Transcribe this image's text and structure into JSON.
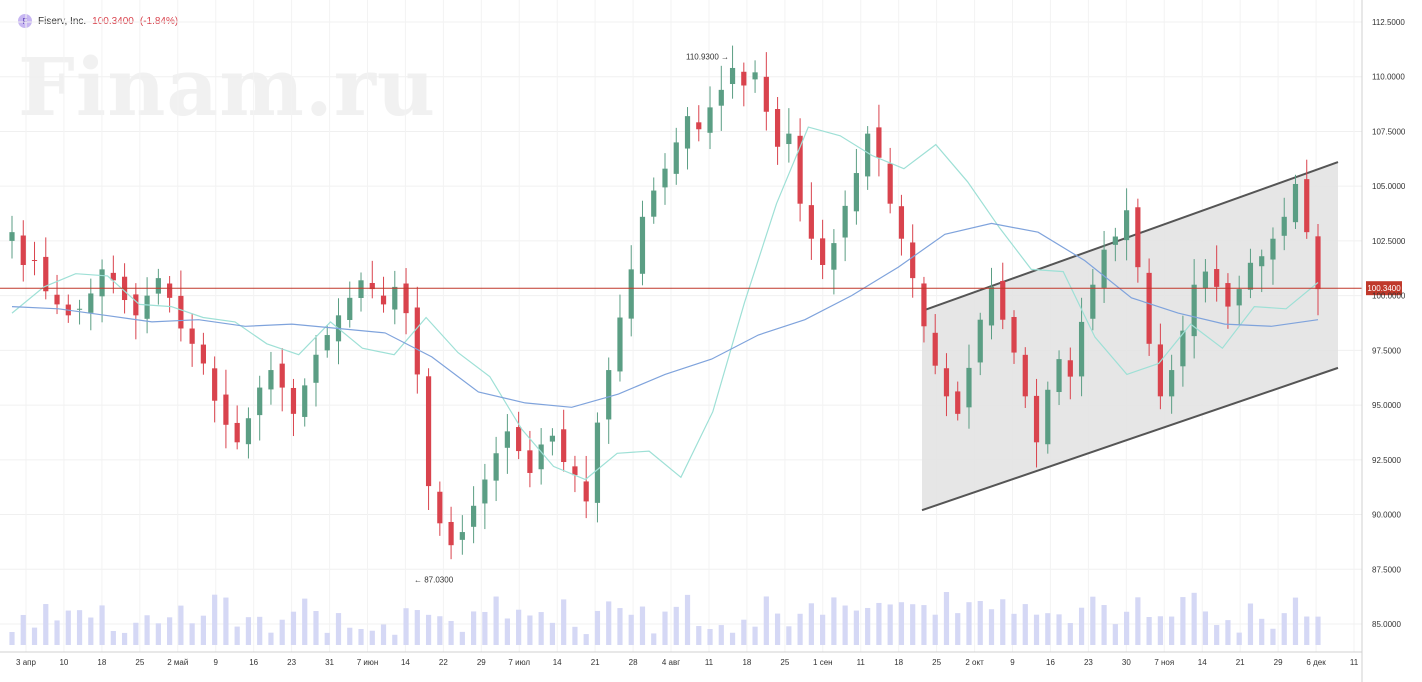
{
  "header": {
    "logo_letter": "F",
    "ticker": "Fiserv, Inc.",
    "price": "100.3400",
    "change": "(-1.84%)"
  },
  "watermark": "Finam.ru",
  "price_tag": "100.3400",
  "annotations": {
    "high_label": "110.9300",
    "low_label": "87.0300"
  },
  "colors": {
    "up": "#5b9e84",
    "down": "#d9434d",
    "sma_fast": "#9ee0d6",
    "sma_slow": "#7fa3dc",
    "volume": "#d5d8f5",
    "price_line": "#c0392b",
    "channel": "#555555"
  },
  "chart_data": {
    "type": "candlestick",
    "title": "Fiserv, Inc.",
    "ylim": [
      84,
      113
    ],
    "y_ticks": [
      "112.5000",
      "110.0000",
      "107.5000",
      "105.0000",
      "102.5000",
      "100.0000",
      "97.5000",
      "95.0000",
      "92.5000",
      "90.0000",
      "87.5000",
      "85.0000"
    ],
    "x_ticks": [
      "3 апр",
      "10",
      "18",
      "25",
      "2 май",
      "9",
      "16",
      "23",
      "31",
      "7 июн",
      "14",
      "22",
      "29",
      "7 июл",
      "14",
      "21",
      "28",
      "4 авг",
      "11",
      "18",
      "25",
      "1 сен",
      "11",
      "18",
      "25",
      "2 окт",
      "9",
      "16",
      "23",
      "30",
      "7 ноя",
      "14",
      "21",
      "29",
      "6 дек",
      "11"
    ],
    "close_series": [
      102.9,
      101.4,
      101.6,
      100.2,
      99.6,
      99.1,
      99.4,
      100.1,
      101.2,
      100.7,
      99.8,
      99.1,
      100.0,
      100.8,
      99.9,
      98.5,
      97.8,
      96.9,
      95.2,
      94.1,
      93.3,
      94.4,
      95.8,
      96.6,
      95.8,
      94.6,
      95.9,
      97.3,
      98.2,
      99.1,
      99.9,
      100.7,
      100.3,
      99.6,
      100.4,
      99.2,
      96.4,
      91.3,
      89.6,
      88.6,
      89.2,
      90.4,
      91.6,
      92.8,
      93.8,
      92.9,
      91.9,
      93.2,
      93.6,
      92.4,
      91.8,
      90.6,
      94.2,
      96.6,
      99.0,
      101.2,
      103.6,
      104.8,
      105.8,
      107.0,
      108.2,
      107.6,
      108.6,
      109.4,
      110.4,
      109.6,
      110.2,
      108.4,
      106.8,
      107.4,
      104.2,
      102.6,
      101.4,
      102.4,
      104.1,
      105.6,
      107.4,
      106.3,
      104.2,
      102.6,
      100.8,
      98.6,
      96.8,
      95.4,
      94.6,
      96.7,
      98.9,
      100.4,
      98.9,
      97.4,
      95.4,
      93.3,
      95.7,
      97.1,
      96.3,
      98.8,
      100.5,
      102.1,
      102.7,
      103.9,
      101.3,
      97.8,
      95.4,
      96.6,
      98.4,
      100.5,
      101.1,
      100.4,
      99.5,
      100.3,
      101.5,
      101.8,
      102.6,
      103.6,
      105.1,
      102.9,
      100.3
    ],
    "sma_fast": [
      99.2,
      100.4,
      101.0,
      100.9,
      99.6,
      99.5,
      99.0,
      98.8,
      97.8,
      97.3,
      98.8,
      97.6,
      97.3,
      99.0,
      97.4,
      96.3,
      93.9,
      92.2,
      91.6,
      92.8,
      92.9,
      91.7,
      94.7,
      99.7,
      104.2,
      107.7,
      107.3,
      106.4,
      105.8,
      106.9,
      105.2,
      103.1,
      101.2,
      101.1,
      98.1,
      96.4,
      96.9,
      98.7,
      97.6,
      99.5,
      99.4,
      100.6
    ],
    "sma_slow": [
      99.5,
      99.4,
      99.1,
      98.8,
      98.9,
      98.6,
      98.7,
      98.5,
      98.3,
      97.2,
      95.6,
      95.1,
      94.9,
      95.5,
      96.4,
      97.1,
      98.2,
      98.9,
      100.0,
      101.3,
      102.8,
      103.3,
      102.9,
      101.6,
      99.9,
      99.2,
      98.7,
      98.6,
      98.9
    ]
  }
}
